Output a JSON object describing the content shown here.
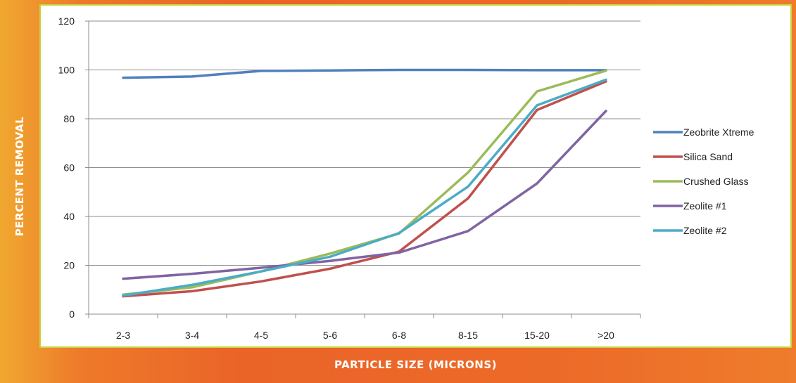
{
  "chart_data": {
    "type": "line",
    "title": "",
    "xlabel": "PARTICLE SIZE (MICRONS)",
    "ylabel": "PERCENT REMOVAL",
    "categories": [
      "2-3",
      "3-4",
      "4-5",
      "5-6",
      "6-8",
      "8-15",
      "15-20",
      ">20"
    ],
    "ylim": [
      0,
      120
    ],
    "yticks": [
      0,
      20,
      40,
      60,
      80,
      100,
      120
    ],
    "grid": true,
    "legend": "right",
    "series": [
      {
        "name": "Zeobrite Xtreme",
        "color": "#4f81bd",
        "values": [
          96.8,
          97.3,
          99.6,
          99.8,
          100,
          100,
          99.9,
          99.9
        ]
      },
      {
        "name": "Silica Sand",
        "color": "#c0504d",
        "values": [
          7.3,
          9.4,
          13.4,
          18.6,
          25.6,
          47.4,
          83.6,
          95.3
        ]
      },
      {
        "name": "Crushed Glass",
        "color": "#9bbb59",
        "values": [
          8,
          11,
          17.5,
          24.8,
          33,
          58,
          91.2,
          99.7
        ]
      },
      {
        "name": "Zeolite #1",
        "color": "#8064a2",
        "values": [
          14.5,
          16.5,
          19,
          21.8,
          25.2,
          34,
          53.5,
          83.2
        ]
      },
      {
        "name": "Zeolite #2",
        "color": "#4bacc6",
        "values": [
          7.6,
          12,
          17.5,
          23.5,
          33.2,
          52.2,
          85.5,
          96
        ]
      }
    ]
  }
}
